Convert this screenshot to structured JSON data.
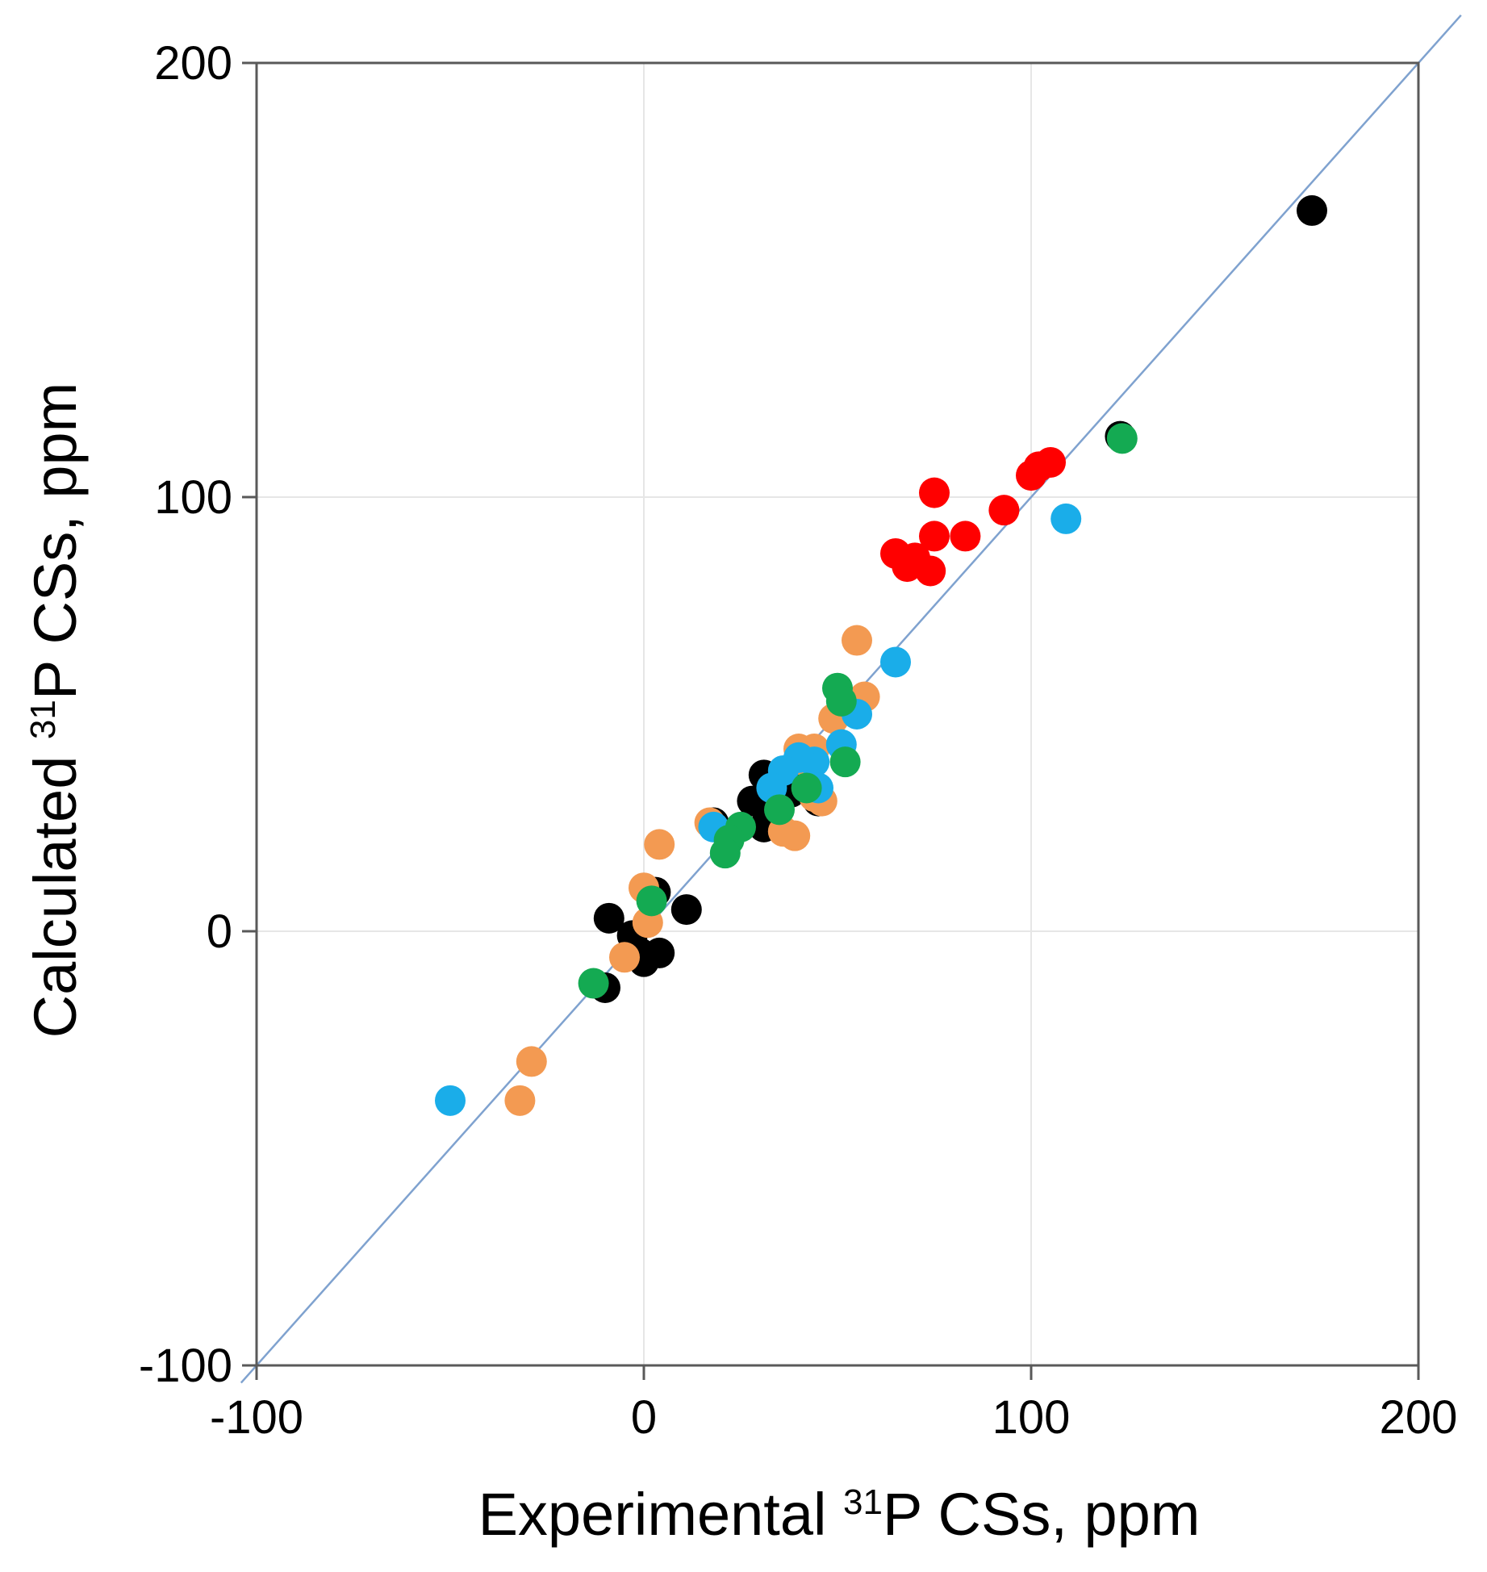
{
  "chart_data": {
    "type": "scatter",
    "title": "",
    "xlabel": {
      "prefix": "Experimental ",
      "sup": "31",
      "suffix": "P CSs, ppm"
    },
    "ylabel": {
      "prefix": "Calculated ",
      "sup": "31",
      "suffix": "P CSs, ppm"
    },
    "xlim": [
      -100,
      200
    ],
    "ylim": [
      -100,
      200
    ],
    "xticks": [
      -100,
      0,
      100,
      200
    ],
    "yticks": [
      -100,
      0,
      100,
      200
    ],
    "xtick_labels": [
      "-100",
      "0",
      "100",
      "200"
    ],
    "ytick_labels": [
      "-100",
      "0",
      "100",
      "200"
    ],
    "grid": true,
    "legend": "none",
    "reference_line": {
      "name": "y = x",
      "x": [
        -104,
        211
      ],
      "y": [
        -104,
        211
      ],
      "color": "#7fa2cf"
    },
    "series": [
      {
        "name": "black",
        "color": "#000000",
        "x": [
          172.5,
          123,
          18,
          28,
          31,
          31,
          32,
          35,
          38,
          41,
          45,
          -9,
          -3,
          0,
          -1,
          4,
          3,
          11,
          -10
        ],
        "y": [
          166,
          114,
          25,
          30,
          24,
          36,
          27,
          34,
          32,
          34,
          30,
          3,
          -1,
          -7,
          -5,
          -5,
          9,
          5,
          -13
        ]
      },
      {
        "name": "orange",
        "color": "#f39a52",
        "x": [
          55,
          57,
          49,
          44,
          40,
          42,
          36,
          39,
          44,
          46,
          17,
          4,
          0,
          1,
          -5,
          -29,
          -32
        ],
        "y": [
          67,
          54,
          49,
          42,
          42,
          39,
          23,
          22,
          31,
          30,
          25,
          20,
          10,
          2,
          -6,
          -30,
          -39
        ]
      },
      {
        "name": "blue",
        "color": "#1aade9",
        "x": [
          109,
          65,
          55,
          51,
          44,
          40,
          36,
          33,
          45,
          18,
          -50
        ],
        "y": [
          95,
          62,
          50,
          43,
          39,
          40,
          37,
          33,
          33,
          24,
          -39
        ]
      },
      {
        "name": "green",
        "color": "#14aa52",
        "x": [
          123.5,
          50,
          51,
          52,
          42,
          35,
          25,
          22,
          21,
          2,
          -13
        ],
        "y": [
          113.5,
          56,
          53,
          39,
          33,
          28,
          24,
          21,
          18,
          7,
          -12
        ]
      },
      {
        "name": "red",
        "color": "#ff0000",
        "x": [
          75,
          75,
          83,
          93,
          100,
          102,
          105,
          65,
          68,
          70,
          74
        ],
        "y": [
          101,
          91,
          91,
          97,
          105,
          107,
          108,
          87,
          84,
          86,
          83
        ]
      }
    ]
  }
}
